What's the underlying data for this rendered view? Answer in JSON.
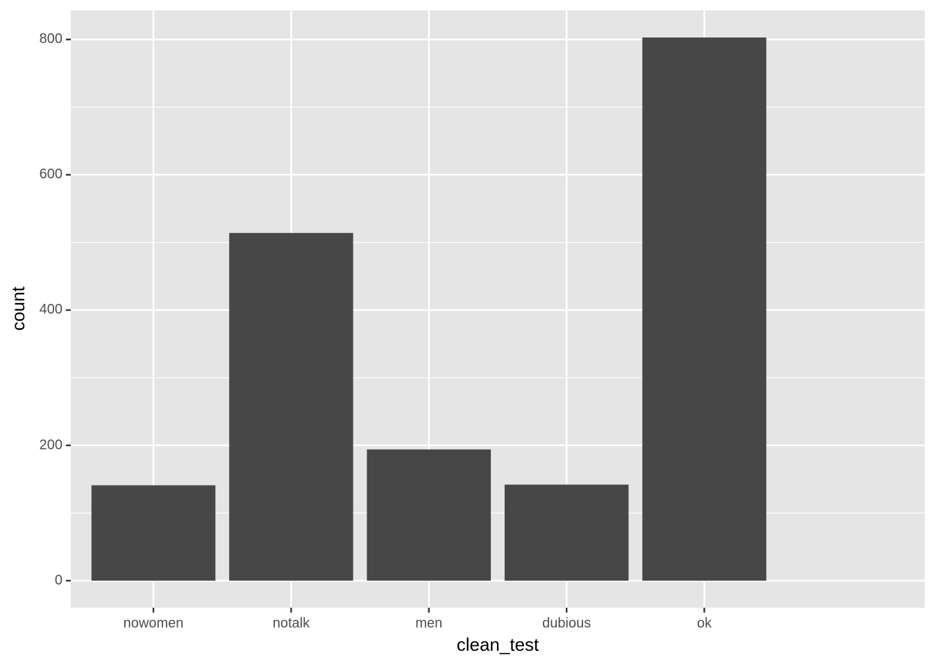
{
  "chart_data": {
    "type": "bar",
    "x_label": "clean_test",
    "y_label": "count",
    "categories": [
      "nowomen",
      "notalk",
      "men",
      "dubious",
      "ok"
    ],
    "values": [
      141,
      514,
      194,
      142,
      803
    ],
    "color": "#474747",
    "ylim": [
      -40,
      843
    ],
    "yticks": [
      0,
      200,
      400,
      600,
      800
    ],
    "minor_yticks": [
      100,
      300,
      500,
      700
    ],
    "grid": true
  }
}
